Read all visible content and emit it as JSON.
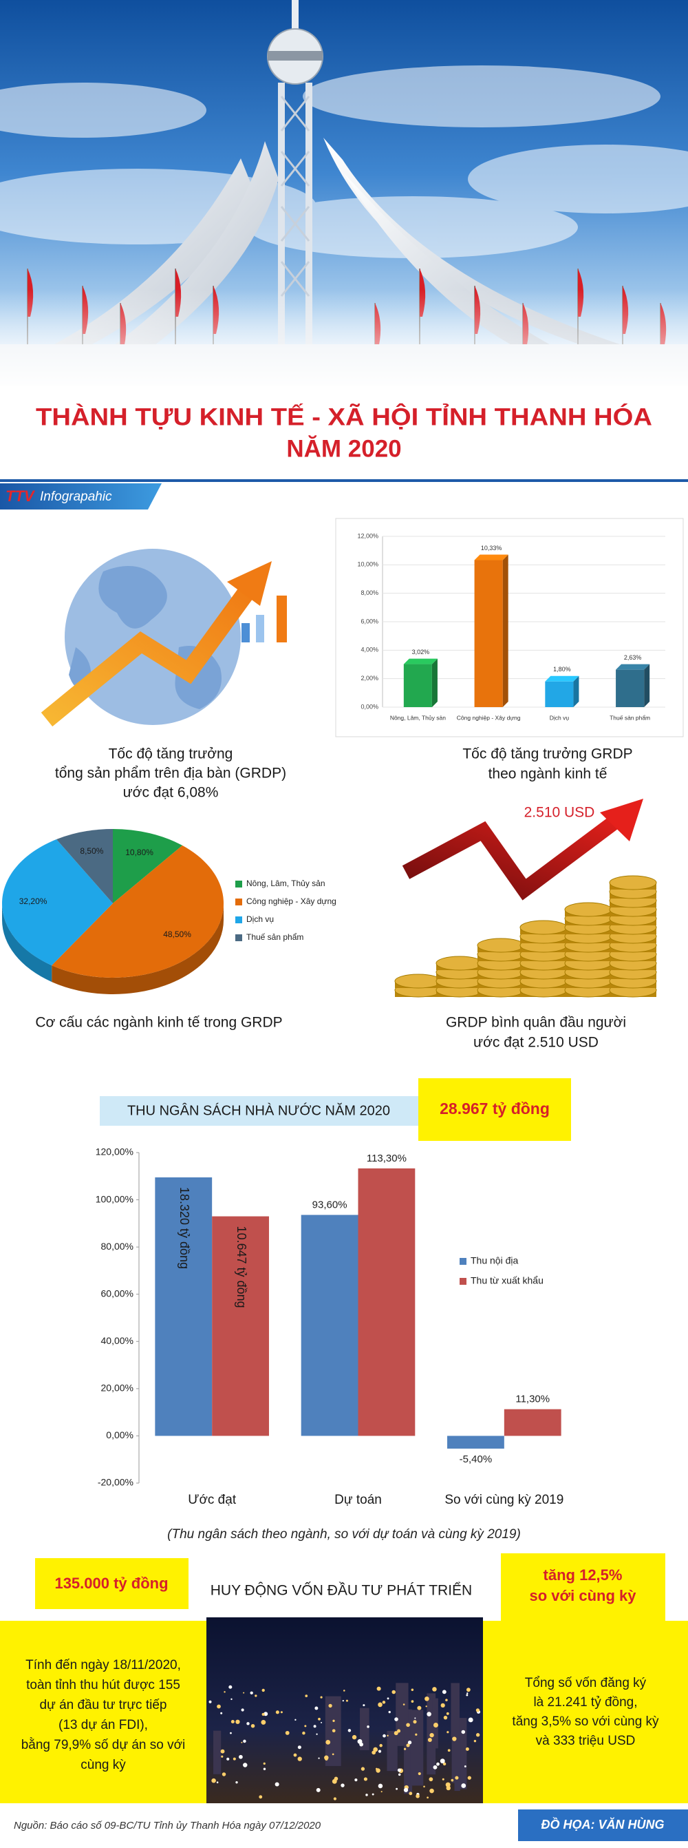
{
  "header": {
    "title": "THÀNH TỰU KINH TẾ - XÃ HỘI TỈNH THANH HÓA",
    "subtitle": "NĂM 2020",
    "brand": "TTV",
    "brand_label": "Infograpahic"
  },
  "grdp": {
    "caption": [
      "Tốc độ tăng trưởng",
      "tổng sản phẩm trên địa bàn (GRDP)",
      "ước đạt 6,08%"
    ]
  },
  "chart_data": [
    {
      "type": "bar3d",
      "caption": [
        "Tốc độ tăng trưởng GRDP",
        "theo ngành kinh tế"
      ],
      "categories": [
        "Nông, Lâm, Thủy sản",
        "Công nghiệp - Xây dựng",
        "Dịch vụ",
        "Thuế sản phẩm"
      ],
      "values": [
        3.02,
        10.33,
        1.8,
        2.63
      ],
      "value_labels": [
        "3,02%",
        "10,33%",
        "1,80%",
        "2,63%"
      ],
      "colors": [
        "#22a84f",
        "#e8730c",
        "#22a7e6",
        "#2f6e8c"
      ],
      "ylim": [
        0,
        12
      ],
      "yticks": [
        {
          "value": 0,
          "label": "0,00%"
        },
        {
          "value": 2,
          "label": "2,00%"
        },
        {
          "value": 4,
          "label": "4,00%"
        },
        {
          "value": 6,
          "label": "6,00%"
        },
        {
          "value": 8,
          "label": "8,00%"
        },
        {
          "value": 10,
          "label": "10,00%"
        },
        {
          "value": 12,
          "label": "12,00%"
        }
      ],
      "grid": true
    },
    {
      "type": "pie3d",
      "caption": [
        "Cơ cấu các ngành kinh tế trong GRDP"
      ],
      "categories": [
        "Nông, Lâm, Thủy sản",
        "Công nghiệp - Xây dựng",
        "Dịch vụ",
        "Thuế sản phẩm"
      ],
      "values": [
        10.8,
        48.5,
        32.2,
        8.5
      ],
      "value_labels": [
        "10,80%",
        "48,50%",
        "32,20%",
        "8,50%"
      ],
      "colors": [
        "#1e9e4a",
        "#e36c0a",
        "#1fa6e8",
        "#4b6a83"
      ]
    },
    {
      "type": "grouped_bar",
      "title": "THU NGÂN SÁCH NHÀ NƯỚC NĂM 2020",
      "total": "28.967 tỷ đồng",
      "note": "(Thu ngân sách theo ngành, so với dự toán và cùng kỳ 2019)",
      "categories": [
        "Ước đạt",
        "Dự toán",
        "So với cùng kỳ 2019"
      ],
      "series": [
        {
          "name": "Thu nội địa",
          "color": "#4f81bd",
          "values": [
            109.5,
            93.6,
            -5.4
          ],
          "value_labels": [
            null,
            "93,60%",
            "-5,40%"
          ]
        },
        {
          "name": "Thu từ xuất khẩu",
          "color": "#c0504d",
          "values": [
            93,
            113.3,
            11.3
          ],
          "value_labels": [
            null,
            "113,30%",
            "11,30%"
          ]
        }
      ],
      "bar_annotations": [
        "18.320 tỷ đồng",
        "10.647 tỷ đồng"
      ],
      "ylim": [
        -20,
        120
      ],
      "yticks": [
        {
          "value": -20,
          "label": "-20,00%"
        },
        {
          "value": 0,
          "label": "0,00%"
        },
        {
          "value": 20,
          "label": "20,00%"
        },
        {
          "value": 40,
          "label": "40,00%"
        },
        {
          "value": 60,
          "label": "60,00%"
        },
        {
          "value": 80,
          "label": "80,00%"
        },
        {
          "value": 100,
          "label": "100,00%"
        },
        {
          "value": 120,
          "label": "120,00%"
        }
      ],
      "legend": "right",
      "grid": false
    }
  ],
  "income": {
    "label": "2.510 USD",
    "caption": [
      "GRDP bình quân đầu người",
      "ước đạt 2.510 USD"
    ]
  },
  "investment": {
    "amount": "135.000 tỷ đồng",
    "title": "HUY ĐỘNG VỐN ĐẦU TƯ PHÁT TRIỂN",
    "growth": [
      "tăng 12,5%",
      "so với cùng kỳ"
    ],
    "left_text": [
      "Tính đến ngày 18/11/2020,",
      "toàn tỉnh thu hút được 155",
      "dự án đầu tư trực tiếp",
      "(13 dự án FDI),",
      "bằng 79,9% số dự án so với",
      "cùng kỳ"
    ],
    "right_text": [
      "Tổng số vốn đăng ký",
      "là 21.241 tỷ đồng,",
      "tăng 3,5% so với cùng kỳ",
      "và 333 triệu USD"
    ]
  },
  "footer": {
    "source": "Nguồn: Báo cáo số 09-BC/TU Tỉnh ủy Thanh Hóa ngày 07/12/2020",
    "credit": "ĐỒ HỌA: VĂN HÙNG"
  }
}
